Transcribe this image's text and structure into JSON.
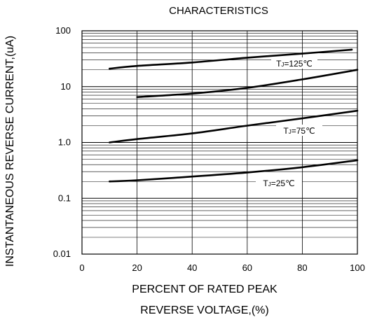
{
  "chart_data": {
    "type": "line",
    "title": "CHARACTERISTICS",
    "xlabel_lines": [
      "PERCENT OF RATED PEAK",
      "REVERSE VOLTAGE,(%)"
    ],
    "ylabel": "INSTANTANEOUS REVERSE CURRENT,(uA)",
    "xlim": [
      0,
      100
    ],
    "ylim": [
      0.01,
      100
    ],
    "yscale": "log",
    "grid": true,
    "x_ticks": [
      "0",
      "20",
      "40",
      "60",
      "80",
      "100"
    ],
    "y_ticks": [
      "100",
      "10",
      "1.0",
      "0.1",
      "0.01"
    ],
    "series": [
      {
        "name": "TJ=125℃",
        "x": [
          10,
          20,
          40,
          60,
          80,
          98
        ],
        "y": [
          21,
          23.5,
          27,
          33,
          39,
          46
        ]
      },
      {
        "name": "",
        "x": [
          20,
          40,
          60,
          80,
          100
        ],
        "y": [
          6.5,
          7.5,
          9.5,
          13.5,
          20
        ]
      },
      {
        "name": "TJ=75℃",
        "x": [
          10,
          20,
          40,
          60,
          80,
          100
        ],
        "y": [
          1.0,
          1.15,
          1.45,
          2.0,
          2.7,
          3.7
        ]
      },
      {
        "name": "TJ=25℃",
        "x": [
          10,
          20,
          40,
          60,
          80,
          100
        ],
        "y": [
          0.2,
          0.21,
          0.245,
          0.29,
          0.36,
          0.48
        ]
      }
    ],
    "annotations": [
      {
        "main": "T",
        "sub": "J",
        "rest": "=125℃"
      },
      {
        "main": "T",
        "sub": "J",
        "rest": "=75℃"
      },
      {
        "main": "T",
        "sub": "J",
        "rest": "=25℃"
      }
    ]
  }
}
